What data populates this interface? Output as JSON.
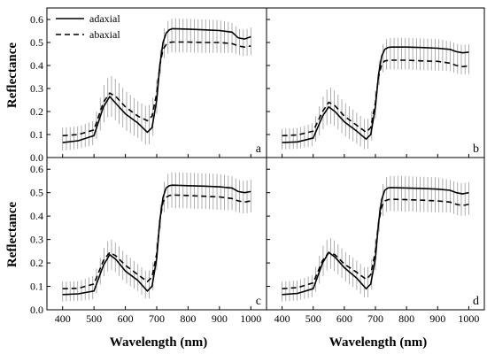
{
  "chart_data": {
    "type": "line",
    "xlabel": "Wavelength (nm)",
    "ylabel": "Reflectance",
    "xlim": [
      350,
      1050
    ],
    "ylim": [
      0.0,
      0.65
    ],
    "xticks": [
      400,
      500,
      600,
      700,
      800,
      900,
      1000
    ],
    "yticks": [
      0.0,
      0.1,
      0.2,
      0.3,
      0.4,
      0.5,
      0.6
    ],
    "xtick_labels": [
      "400",
      "500",
      "600",
      "700",
      "800",
      "900",
      "1000"
    ],
    "ytick_labels": [
      "0.0",
      "0.1",
      "0.2",
      "0.3",
      "0.4",
      "0.5",
      "0.6"
    ],
    "legend": {
      "placement": "top-left",
      "panel": "a",
      "entries": [
        {
          "name": "adaxial",
          "style": "solid"
        },
        {
          "name": "abaxial",
          "style": "dashed"
        }
      ]
    },
    "error_bars": true,
    "panels": [
      {
        "label": "a",
        "x": [
          400,
          450,
          500,
          530,
          550,
          570,
          600,
          640,
          670,
          685,
          700,
          710,
          720,
          730,
          740,
          750,
          800,
          850,
          900,
          940,
          960,
          980,
          1000
        ],
        "series": [
          {
            "name": "adaxial",
            "values": [
              0.065,
              0.073,
              0.095,
              0.22,
              0.265,
              0.235,
              0.19,
              0.15,
              0.11,
              0.13,
              0.25,
              0.4,
              0.5,
              0.54,
              0.555,
              0.56,
              0.558,
              0.555,
              0.552,
              0.545,
              0.52,
              0.515,
              0.525
            ]
          },
          {
            "name": "abaxial",
            "values": [
              0.095,
              0.1,
              0.12,
              0.24,
              0.28,
              0.265,
              0.22,
              0.18,
              0.16,
              0.18,
              0.28,
              0.4,
              0.47,
              0.49,
              0.5,
              0.502,
              0.502,
              0.5,
              0.5,
              0.495,
              0.485,
              0.48,
              0.485
            ]
          }
        ],
        "error": [
          0.035,
          0.035,
          0.04,
          0.07,
          0.08,
          0.075,
          0.07,
          0.065,
          0.06,
          0.06,
          0.06,
          0.05,
          0.045,
          0.045,
          0.045,
          0.045,
          0.045,
          0.045,
          0.045,
          0.04,
          0.04,
          0.04,
          0.04
        ]
      },
      {
        "label": "b",
        "x": [
          400,
          450,
          500,
          530,
          550,
          570,
          600,
          640,
          670,
          685,
          700,
          710,
          720,
          730,
          740,
          750,
          800,
          850,
          900,
          940,
          960,
          980,
          1000
        ],
        "series": [
          {
            "name": "adaxial",
            "values": [
              0.065,
              0.068,
              0.085,
              0.18,
              0.22,
              0.2,
              0.155,
              0.115,
              0.08,
              0.1,
              0.22,
              0.36,
              0.44,
              0.47,
              0.478,
              0.48,
              0.48,
              0.478,
              0.475,
              0.47,
              0.46,
              0.455,
              0.458
            ]
          },
          {
            "name": "abaxial",
            "values": [
              0.095,
              0.098,
              0.115,
              0.2,
              0.24,
              0.225,
              0.18,
              0.14,
              0.11,
              0.13,
              0.24,
              0.35,
              0.405,
              0.42,
              0.422,
              0.423,
              0.423,
              0.42,
              0.418,
              0.41,
              0.4,
              0.395,
              0.398
            ]
          }
        ],
        "error": [
          0.03,
          0.03,
          0.035,
          0.06,
          0.07,
          0.065,
          0.06,
          0.055,
          0.05,
          0.05,
          0.05,
          0.045,
          0.04,
          0.04,
          0.04,
          0.04,
          0.04,
          0.04,
          0.04,
          0.035,
          0.035,
          0.035,
          0.035
        ]
      },
      {
        "label": "c",
        "x": [
          400,
          450,
          500,
          530,
          550,
          570,
          600,
          640,
          670,
          685,
          700,
          710,
          720,
          730,
          740,
          750,
          800,
          850,
          900,
          940,
          960,
          980,
          1000
        ],
        "series": [
          {
            "name": "adaxial",
            "values": [
              0.065,
              0.068,
              0.08,
              0.19,
              0.235,
              0.215,
              0.165,
              0.125,
              0.08,
              0.1,
              0.22,
              0.38,
              0.48,
              0.52,
              0.53,
              0.532,
              0.53,
              0.528,
              0.525,
              0.52,
              0.505,
              0.5,
              0.505
            ]
          },
          {
            "name": "abaxial",
            "values": [
              0.09,
              0.092,
              0.11,
              0.21,
              0.245,
              0.23,
              0.19,
              0.15,
              0.12,
              0.14,
              0.24,
              0.38,
              0.46,
              0.48,
              0.488,
              0.49,
              0.488,
              0.485,
              0.482,
              0.475,
              0.465,
              0.46,
              0.465
            ]
          }
        ],
        "error": [
          0.03,
          0.03,
          0.035,
          0.05,
          0.06,
          0.055,
          0.05,
          0.045,
          0.04,
          0.04,
          0.05,
          0.05,
          0.05,
          0.05,
          0.055,
          0.055,
          0.055,
          0.055,
          0.055,
          0.05,
          0.05,
          0.05,
          0.05
        ]
      },
      {
        "label": "d",
        "x": [
          400,
          450,
          500,
          530,
          550,
          570,
          600,
          640,
          670,
          685,
          700,
          710,
          720,
          730,
          740,
          750,
          800,
          850,
          900,
          940,
          960,
          980,
          1000
        ],
        "series": [
          {
            "name": "adaxial",
            "values": [
              0.065,
              0.07,
              0.09,
              0.2,
              0.245,
              0.225,
              0.18,
              0.135,
              0.09,
              0.11,
              0.22,
              0.37,
              0.47,
              0.51,
              0.52,
              0.522,
              0.52,
              0.518,
              0.515,
              0.51,
              0.5,
              0.495,
              0.5
            ]
          },
          {
            "name": "abaxial",
            "values": [
              0.09,
              0.095,
              0.115,
              0.21,
              0.245,
              0.235,
              0.195,
              0.16,
              0.13,
              0.15,
              0.25,
              0.37,
              0.44,
              0.465,
              0.47,
              0.472,
              0.47,
              0.468,
              0.465,
              0.46,
              0.45,
              0.445,
              0.45
            ]
          }
        ],
        "error": [
          0.03,
          0.03,
          0.035,
          0.06,
          0.065,
          0.06,
          0.055,
          0.05,
          0.045,
          0.045,
          0.05,
          0.05,
          0.05,
          0.05,
          0.05,
          0.05,
          0.05,
          0.05,
          0.05,
          0.045,
          0.045,
          0.045,
          0.045
        ]
      }
    ]
  }
}
